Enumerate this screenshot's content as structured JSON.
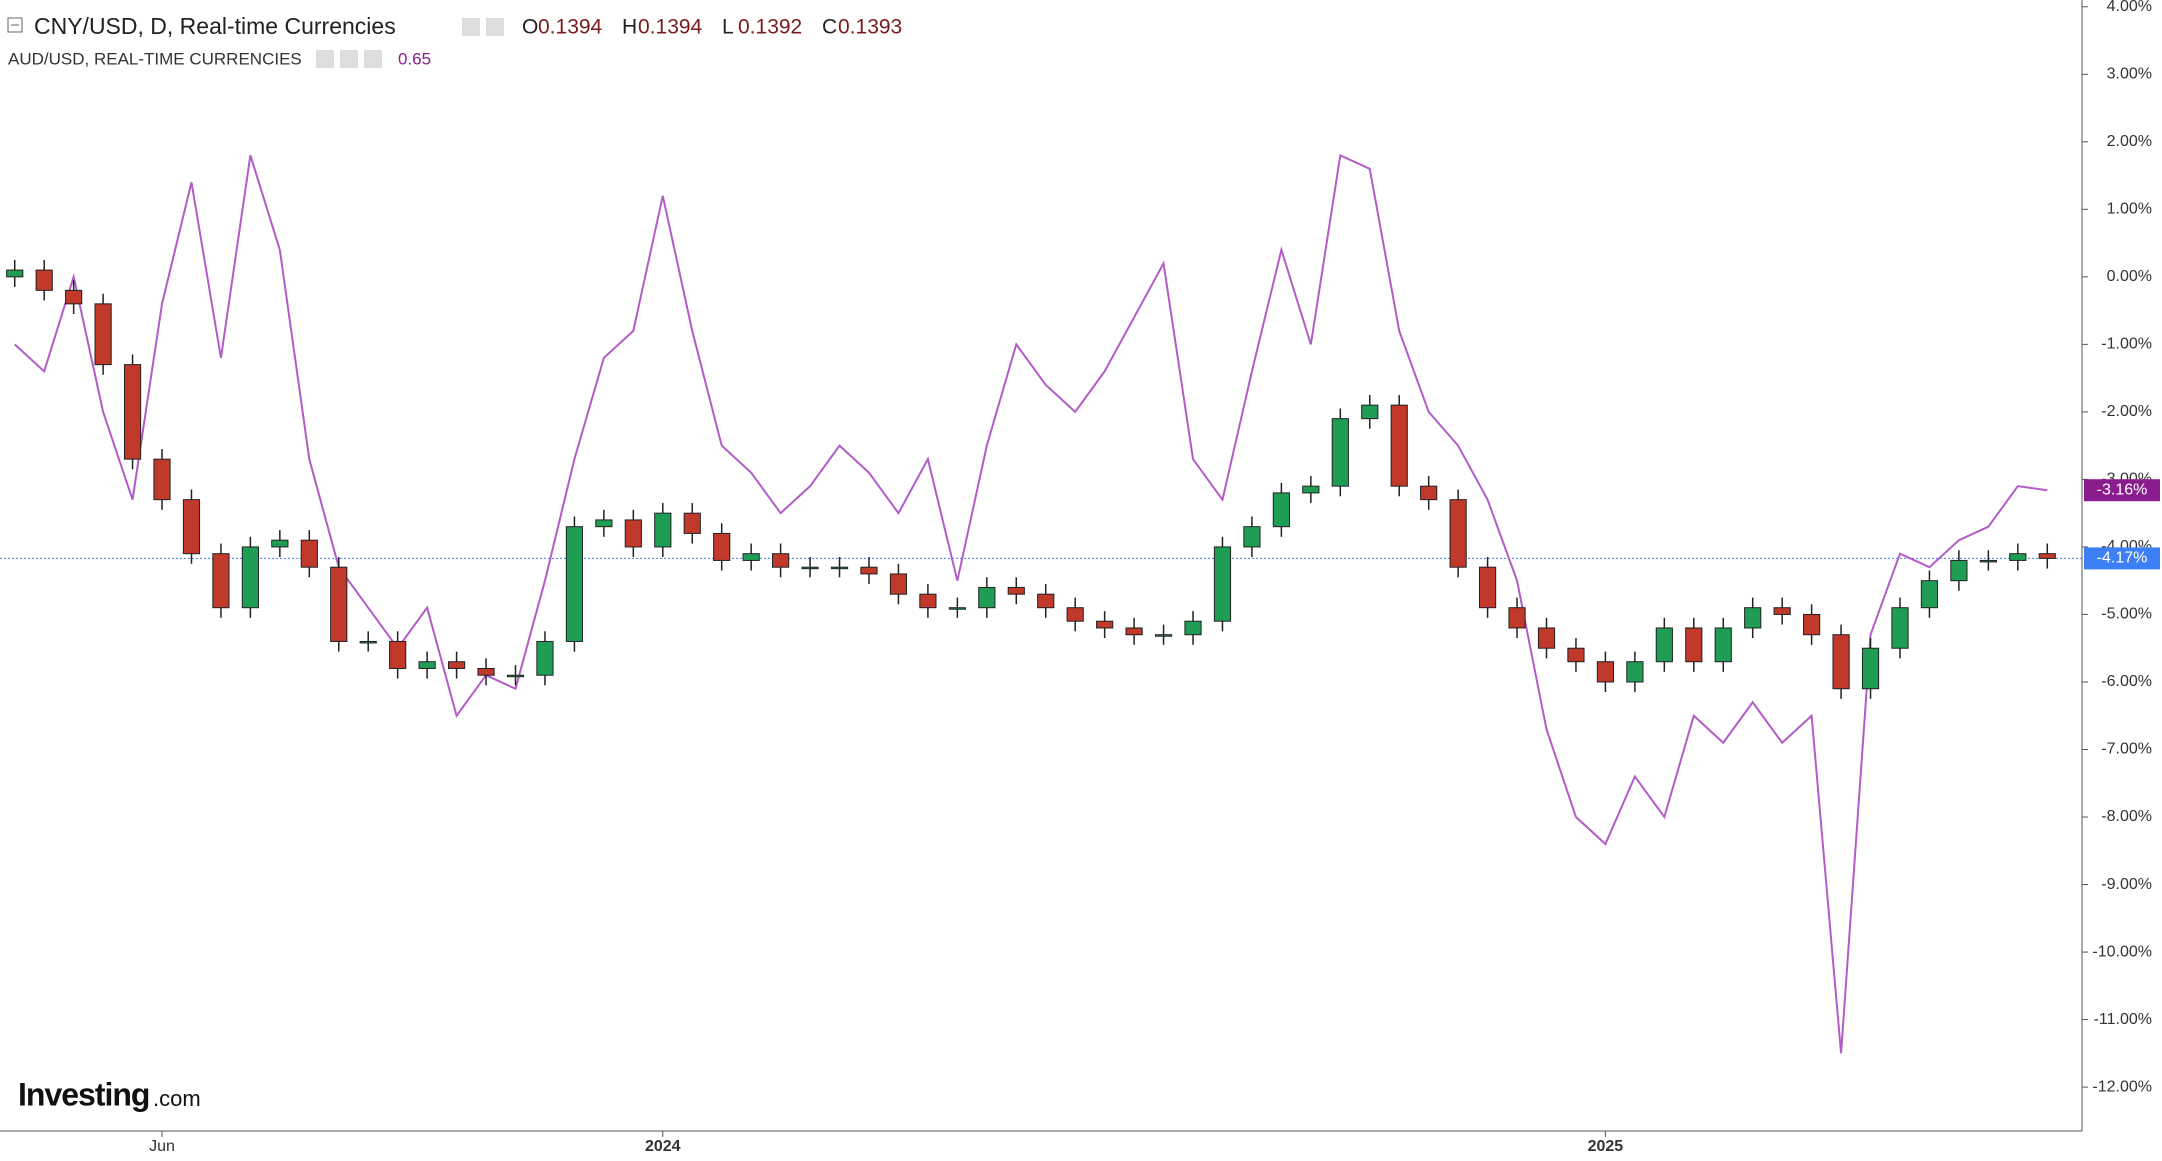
{
  "chart_data": {
    "type": "candlestick",
    "title": "CNY/USD, D, Real-time Currencies",
    "ohlc_legend": [
      {
        "key": "O",
        "text": "0.1394"
      },
      {
        "key": "H",
        "text": "0.1394"
      },
      {
        "key": "L",
        "text": "0.1392"
      },
      {
        "key": "C",
        "text": "0.1393"
      }
    ],
    "overlay_title": "AUD/USD, REAL-TIME CURRENCIES",
    "overlay_value": "0.65",
    "brand": {
      "name": "Investing",
      "suffix": ".com"
    },
    "categories": [
      null,
      null,
      null,
      null,
      null,
      "Jun",
      null,
      null,
      null,
      null,
      null,
      null,
      null,
      null,
      null,
      null,
      null,
      null,
      null,
      null,
      null,
      null,
      "2024",
      null,
      null,
      null,
      null,
      null,
      null,
      null,
      null,
      null,
      null,
      null,
      null,
      null,
      null,
      null,
      null,
      null,
      null,
      null,
      null,
      null,
      null,
      null,
      null,
      null,
      null,
      null,
      null,
      null,
      null,
      null,
      "2025",
      null,
      null,
      null,
      null,
      null,
      null,
      null,
      null,
      null,
      null,
      null,
      null,
      null,
      null,
      null
    ],
    "candles": {
      "name": "CNY/USD",
      "up_color": "#1f9d55",
      "down_color": "#c0392b",
      "open": [
        0.0,
        0.1,
        -0.2,
        -0.4,
        -1.3,
        -2.7,
        -3.3,
        -4.1,
        -4.9,
        -4.0,
        -3.9,
        -4.3,
        -5.4,
        -5.4,
        -5.8,
        -5.7,
        -5.8,
        -5.9,
        -5.9,
        -5.4,
        -3.7,
        -3.6,
        -4.0,
        -3.5,
        -3.8,
        -4.2,
        -4.1,
        -4.3,
        -4.3,
        -4.3,
        -4.4,
        -4.7,
        -4.9,
        -4.9,
        -4.6,
        -4.7,
        -4.9,
        -5.1,
        -5.2,
        -5.3,
        -5.3,
        -5.1,
        -4.0,
        -3.7,
        -3.2,
        -3.1,
        -2.1,
        -1.9,
        -3.1,
        -3.3,
        -4.3,
        -4.9,
        -5.2,
        -5.5,
        -5.7,
        -6.0,
        -5.7,
        -5.2,
        -5.7,
        -5.2,
        -4.9,
        -5.0,
        -5.3,
        -6.1,
        -5.5,
        -4.9,
        -4.5,
        -4.2,
        -4.2,
        -4.1
      ],
      "high": [
        0.25,
        0.25,
        -0.05,
        -0.25,
        -1.15,
        -2.55,
        -3.15,
        -3.95,
        -3.85,
        -3.75,
        -3.75,
        -4.15,
        -5.25,
        -5.25,
        -5.55,
        -5.55,
        -5.65,
        -5.75,
        -5.25,
        -3.55,
        -3.45,
        -3.45,
        -3.35,
        -3.35,
        -3.65,
        -3.95,
        -3.95,
        -4.15,
        -4.15,
        -4.15,
        -4.25,
        -4.55,
        -4.75,
        -4.45,
        -4.45,
        -4.55,
        -4.75,
        -4.95,
        -5.05,
        -5.15,
        -4.95,
        -3.85,
        -3.55,
        -3.05,
        -2.95,
        -1.95,
        -1.75,
        -1.75,
        -2.95,
        -3.15,
        -4.15,
        -4.75,
        -5.05,
        -5.35,
        -5.55,
        -5.55,
        -5.05,
        -5.05,
        -5.05,
        -4.75,
        -4.75,
        -4.85,
        -5.15,
        -5.35,
        -4.75,
        -4.35,
        -4.05,
        -4.05,
        -3.95,
        -3.95
      ],
      "low": [
        -0.15,
        -0.35,
        -0.55,
        -1.45,
        -2.85,
        -3.45,
        -4.25,
        -5.05,
        -5.05,
        -4.15,
        -4.45,
        -5.55,
        -5.55,
        -5.95,
        -5.95,
        -5.95,
        -6.05,
        -6.05,
        -6.05,
        -5.55,
        -3.85,
        -4.15,
        -4.15,
        -3.95,
        -4.35,
        -4.35,
        -4.45,
        -4.45,
        -4.45,
        -4.55,
        -4.85,
        -5.05,
        -5.05,
        -5.05,
        -4.85,
        -5.05,
        -5.25,
        -5.35,
        -5.45,
        -5.45,
        -5.45,
        -5.25,
        -4.15,
        -3.85,
        -3.35,
        -3.25,
        -2.25,
        -3.25,
        -3.45,
        -4.45,
        -5.05,
        -5.35,
        -5.65,
        -5.85,
        -6.15,
        -6.15,
        -5.85,
        -5.85,
        -5.85,
        -5.35,
        -5.15,
        -5.45,
        -6.25,
        -6.25,
        -5.65,
        -5.05,
        -4.65,
        -4.35,
        -4.35,
        -4.32
      ],
      "close": [
        0.1,
        -0.2,
        -0.4,
        -1.3,
        -2.7,
        -3.3,
        -4.1,
        -4.9,
        -4.0,
        -3.9,
        -4.3,
        -5.4,
        -5.4,
        -5.8,
        -5.7,
        -5.8,
        -5.9,
        -5.9,
        -5.4,
        -3.7,
        -3.6,
        -4.0,
        -3.5,
        -3.8,
        -4.2,
        -4.1,
        -4.3,
        -4.3,
        -4.3,
        -4.4,
        -4.7,
        -4.9,
        -4.9,
        -4.6,
        -4.7,
        -4.9,
        -5.1,
        -5.2,
        -5.3,
        -5.3,
        -5.1,
        -4.0,
        -3.7,
        -3.2,
        -3.1,
        -2.1,
        -1.9,
        -3.1,
        -3.3,
        -4.3,
        -4.9,
        -5.2,
        -5.5,
        -5.7,
        -6.0,
        -5.7,
        -5.2,
        -5.7,
        -5.2,
        -4.9,
        -5.0,
        -5.3,
        -6.1,
        -5.5,
        -4.9,
        -4.5,
        -4.2,
        -4.2,
        -4.1,
        -4.17
      ],
      "last_label": "-4.17%",
      "label_color": "#3d7ff5"
    },
    "series": [
      {
        "name": "AUD/USD",
        "color": "#b35cc8",
        "last_label": "-3.16%",
        "label_color": "#8b1c8e",
        "values": [
          -1.0,
          -1.4,
          0.0,
          -2.0,
          -3.3,
          -0.4,
          1.4,
          -1.2,
          1.8,
          0.4,
          -2.7,
          -4.3,
          -4.9,
          -5.5,
          -4.9,
          -6.5,
          -5.9,
          -6.1,
          -4.5,
          -2.7,
          -1.2,
          -0.8,
          1.2,
          -0.8,
          -2.5,
          -2.9,
          -3.5,
          -3.1,
          -2.5,
          -2.9,
          -3.5,
          -2.7,
          -4.5,
          -2.5,
          -1.0,
          -1.6,
          -2.0,
          -1.4,
          -0.6,
          0.2,
          -2.7,
          -3.3,
          -1.4,
          0.4,
          -1.0,
          1.8,
          1.6,
          -0.8,
          -2.0,
          -2.5,
          -3.3,
          -4.5,
          -6.7,
          -8.0,
          -8.4,
          -7.4,
          -8.0,
          -6.5,
          -6.9,
          -6.3,
          -6.9,
          -6.5,
          -11.5,
          -5.3,
          -4.1,
          -4.3,
          -3.9,
          -3.7,
          -3.1,
          -3.16
        ]
      }
    ],
    "ylim": [
      -12.65,
      4.1
    ],
    "yticks": [
      {
        "value": 4,
        "label": "4.00%"
      },
      {
        "value": 3,
        "label": "3.00%"
      },
      {
        "value": 2,
        "label": "2.00%"
      },
      {
        "value": 1,
        "label": "1.00%"
      },
      {
        "value": 0,
        "label": "0.00%"
      },
      {
        "value": -1,
        "label": "-1.00%"
      },
      {
        "value": -2,
        "label": "-2.00%"
      },
      {
        "value": -3,
        "label": "-3.00%"
      },
      {
        "value": -4,
        "label": "-4.00%"
      },
      {
        "value": -5,
        "label": "-5.00%"
      },
      {
        "value": -6,
        "label": "-6.00%"
      },
      {
        "value": -7,
        "label": "-7.00%"
      },
      {
        "value": -8,
        "label": "-8.00%"
      },
      {
        "value": -9,
        "label": "-9.00%"
      },
      {
        "value": -10,
        "label": "-10.00%"
      },
      {
        "value": -11,
        "label": "-11.00%"
      },
      {
        "value": -12,
        "label": "-12.00%"
      }
    ],
    "grid": false
  }
}
